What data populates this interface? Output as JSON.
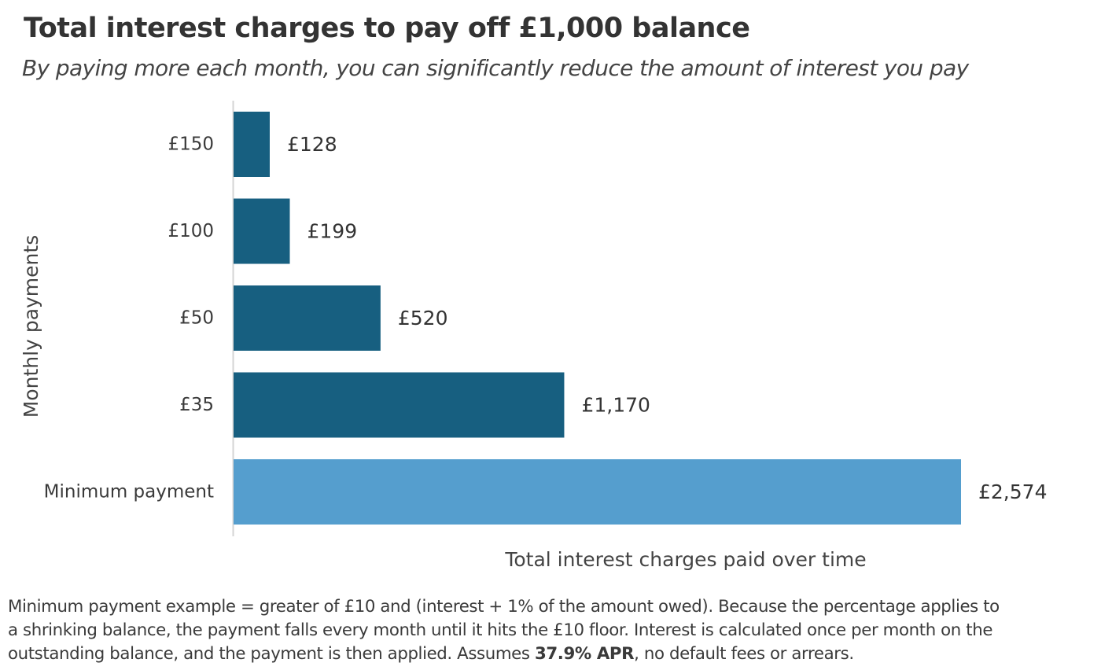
{
  "header": {
    "title": "Total interest charges to pay off £1,000 balance",
    "subtitle": "By paying more each month, you can significantly reduce the amount of interest you pay"
  },
  "chart_data": {
    "type": "bar",
    "orientation": "horizontal",
    "categories": [
      "£150",
      "£100",
      "£50",
      "£35",
      "Minimum payment"
    ],
    "values": [
      128,
      199,
      520,
      1170,
      2574
    ],
    "value_labels": [
      "£128",
      "£199",
      "£520",
      "£1,170",
      "£2,574"
    ],
    "bar_colors": [
      "#175f80",
      "#175f80",
      "#175f80",
      "#175f80",
      "#559ece"
    ],
    "xlabel": "Total interest charges paid over time",
    "ylabel": "Monthly payments",
    "xlim": [
      0,
      2574
    ],
    "grid": false,
    "legend": "none"
  },
  "footnote": {
    "line1": "Minimum payment example = greater of £10 and (interest + 1% of the amount owed). Because the percentage applies to",
    "line2": "a shrinking balance, the payment falls every month until it hits the £10 floor. Interest is calculated once per month on the",
    "line3_pre": "outstanding balance, and the payment is then applied. Assumes ",
    "line3_bold": "37.9% APR",
    "line3_post": ", no default fees or arrears."
  }
}
